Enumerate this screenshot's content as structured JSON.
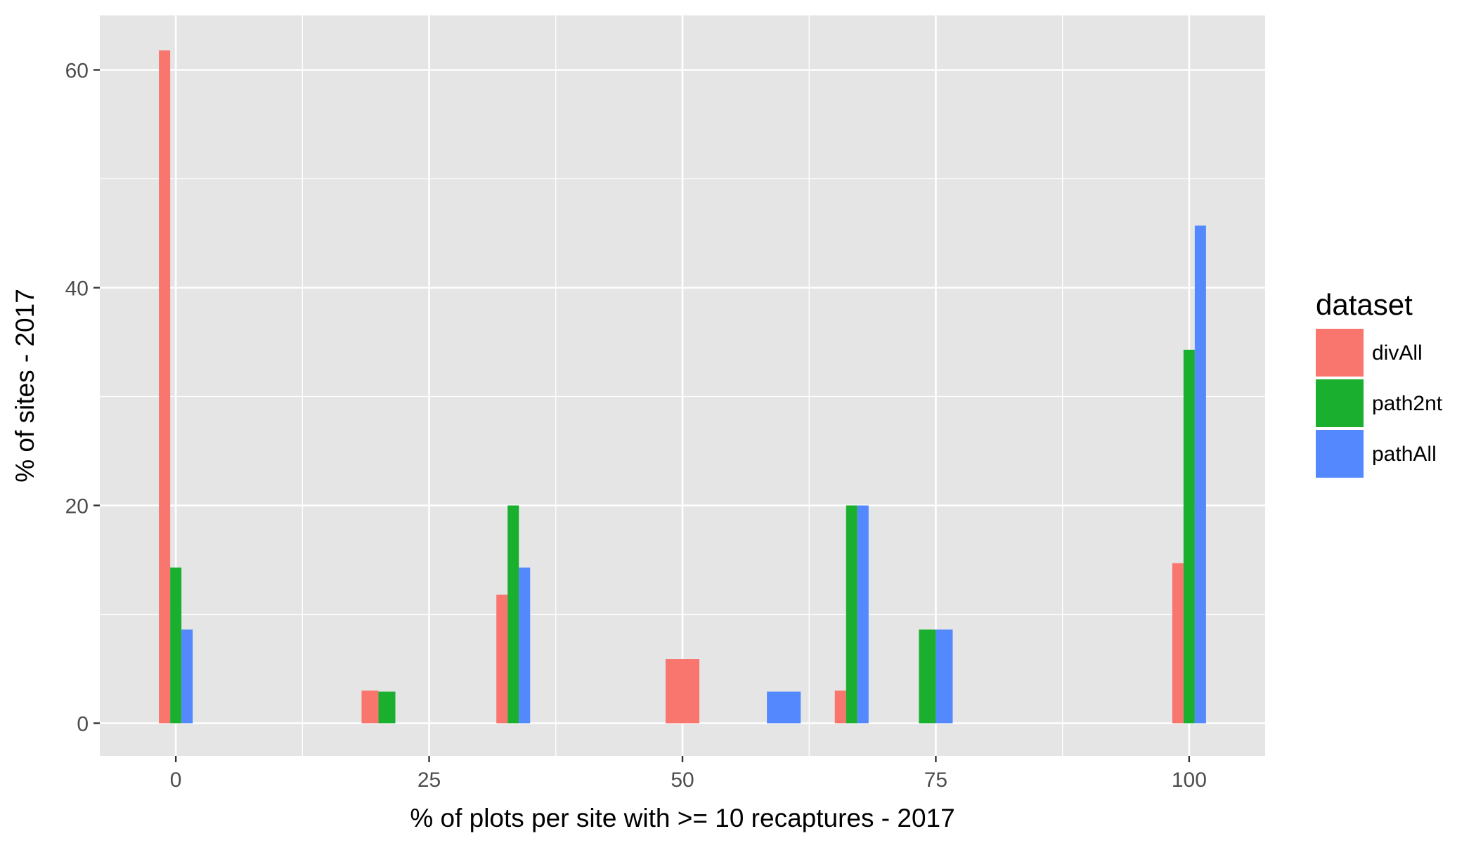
{
  "chart_data": {
    "type": "bar",
    "xlabel": "% of plots per site with >= 10 recaptures - 2017",
    "ylabel": "% of sites - 2017",
    "xlim": [
      -7.5,
      107.5
    ],
    "ylim": [
      -3,
      65
    ],
    "x_ticks": [
      0,
      25,
      50,
      75,
      100
    ],
    "y_ticks": [
      0,
      20,
      40,
      60
    ],
    "grid": true,
    "legend": {
      "title": "dataset",
      "position": "right"
    },
    "series": [
      {
        "name": "divAll",
        "color": "#F8766D",
        "points": [
          {
            "x": 0,
            "y": 61.8
          },
          {
            "x": 20,
            "y": 3.0
          },
          {
            "x": 33.3,
            "y": 11.8
          },
          {
            "x": 50,
            "y": 5.9
          },
          {
            "x": 66.7,
            "y": 3.0
          },
          {
            "x": 100,
            "y": 14.7
          }
        ]
      },
      {
        "name": "path2nt",
        "color": "#1AAF2E",
        "points": [
          {
            "x": 0,
            "y": 14.3
          },
          {
            "x": 20,
            "y": 2.9
          },
          {
            "x": 33.3,
            "y": 20.0
          },
          {
            "x": 66.7,
            "y": 20.0
          },
          {
            "x": 75,
            "y": 8.6
          },
          {
            "x": 100,
            "y": 34.3
          }
        ]
      },
      {
        "name": "pathAll",
        "color": "#5388FF",
        "points": [
          {
            "x": 0,
            "y": 8.6
          },
          {
            "x": 33.3,
            "y": 14.3
          },
          {
            "x": 60,
            "y": 2.9
          },
          {
            "x": 66.7,
            "y": 20.0
          },
          {
            "x": 75,
            "y": 8.6
          },
          {
            "x": 100,
            "y": 45.7
          }
        ]
      }
    ]
  }
}
